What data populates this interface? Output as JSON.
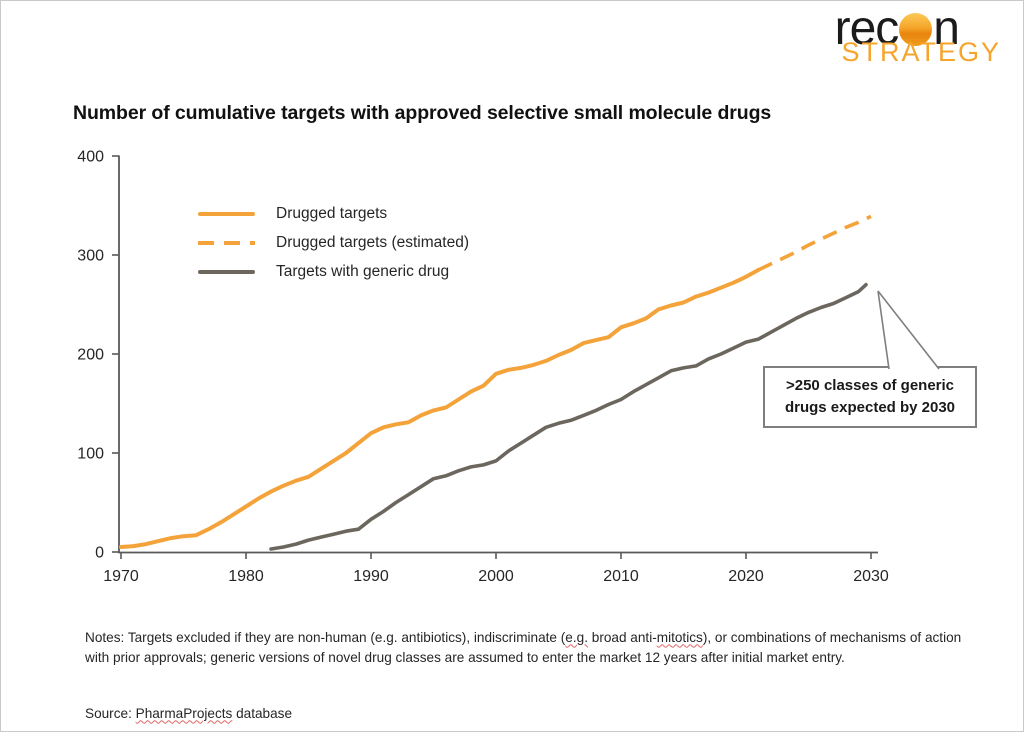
{
  "logo": {
    "word_prefix": "rec",
    "word_suffix": "n",
    "word_bottom": "STRATEGY"
  },
  "title": "Number of cumulative targets with approved selective small molecule drugs",
  "colors": {
    "orange": "#f3a33a",
    "gray": "#6c675e",
    "axis": "#595959",
    "callout_border": "#7f7f7f"
  },
  "chart_data": {
    "type": "line",
    "title": "Number of cumulative targets with approved selective small molecule drugs",
    "xlabel": "",
    "ylabel": "",
    "xlim": [
      1970,
      2030
    ],
    "ylim": [
      0,
      400
    ],
    "x_ticks": [
      1970,
      1980,
      1990,
      2000,
      2010,
      2020,
      2030
    ],
    "y_ticks": [
      0,
      100,
      200,
      300,
      400
    ],
    "grid": false,
    "legend_position": "upper-left-inside",
    "axis_color": "#595959",
    "series": [
      {
        "name": "Drugged targets",
        "color": "#f3a33a",
        "dashed": false,
        "points": [
          [
            1970,
            5
          ],
          [
            1971,
            6
          ],
          [
            1972,
            8
          ],
          [
            1973,
            11
          ],
          [
            1974,
            14
          ],
          [
            1975,
            16
          ],
          [
            1976,
            17
          ],
          [
            1977,
            23
          ],
          [
            1978,
            30
          ],
          [
            1979,
            38
          ],
          [
            1980,
            46
          ],
          [
            1981,
            54
          ],
          [
            1982,
            61
          ],
          [
            1983,
            67
          ],
          [
            1984,
            72
          ],
          [
            1985,
            76
          ],
          [
            1986,
            84
          ],
          [
            1987,
            92
          ],
          [
            1988,
            100
          ],
          [
            1989,
            110
          ],
          [
            1990,
            120
          ],
          [
            1991,
            126
          ],
          [
            1992,
            129
          ],
          [
            1993,
            131
          ],
          [
            1994,
            138
          ],
          [
            1995,
            143
          ],
          [
            1996,
            146
          ],
          [
            1997,
            154
          ],
          [
            1998,
            162
          ],
          [
            1999,
            168
          ],
          [
            2000,
            180
          ],
          [
            2001,
            184
          ],
          [
            2002,
            186
          ],
          [
            2003,
            189
          ],
          [
            2004,
            193
          ],
          [
            2005,
            199
          ],
          [
            2006,
            204
          ],
          [
            2007,
            211
          ],
          [
            2008,
            214
          ],
          [
            2009,
            217
          ],
          [
            2010,
            227
          ],
          [
            2011,
            231
          ],
          [
            2012,
            236
          ],
          [
            2013,
            245
          ],
          [
            2014,
            249
          ],
          [
            2015,
            252
          ],
          [
            2016,
            258
          ],
          [
            2017,
            262
          ],
          [
            2018,
            267
          ],
          [
            2019,
            272
          ],
          [
            2020,
            278
          ],
          [
            2021,
            285
          ]
        ]
      },
      {
        "name": "Drugged targets (estimated)",
        "color": "#f3a33a",
        "dashed": true,
        "points": [
          [
            2021,
            285
          ],
          [
            2022,
            291
          ],
          [
            2023,
            297
          ],
          [
            2024,
            303
          ],
          [
            2025,
            310
          ],
          [
            2026,
            316
          ],
          [
            2027,
            322
          ],
          [
            2028,
            328
          ],
          [
            2029,
            333
          ],
          [
            2030,
            339
          ]
        ]
      },
      {
        "name": "Targets with generic drug",
        "color": "#6c675e",
        "dashed": false,
        "points": [
          [
            1982,
            3
          ],
          [
            1983,
            5
          ],
          [
            1984,
            8
          ],
          [
            1985,
            12
          ],
          [
            1986,
            15
          ],
          [
            1987,
            18
          ],
          [
            1988,
            21
          ],
          [
            1989,
            23
          ],
          [
            1990,
            33
          ],
          [
            1991,
            41
          ],
          [
            1992,
            50
          ],
          [
            1993,
            58
          ],
          [
            1994,
            66
          ],
          [
            1995,
            74
          ],
          [
            1996,
            77
          ],
          [
            1997,
            82
          ],
          [
            1998,
            86
          ],
          [
            1999,
            88
          ],
          [
            2000,
            92
          ],
          [
            2001,
            102
          ],
          [
            2002,
            110
          ],
          [
            2003,
            118
          ],
          [
            2004,
            126
          ],
          [
            2005,
            130
          ],
          [
            2006,
            133
          ],
          [
            2007,
            138
          ],
          [
            2008,
            143
          ],
          [
            2009,
            149
          ],
          [
            2010,
            154
          ],
          [
            2011,
            162
          ],
          [
            2012,
            169
          ],
          [
            2013,
            176
          ],
          [
            2014,
            183
          ],
          [
            2015,
            186
          ],
          [
            2016,
            188
          ],
          [
            2017,
            195
          ],
          [
            2018,
            200
          ],
          [
            2019,
            206
          ],
          [
            2020,
            212
          ],
          [
            2021,
            215
          ],
          [
            2022,
            222
          ],
          [
            2023,
            229
          ],
          [
            2024,
            236
          ],
          [
            2025,
            242
          ],
          [
            2026,
            247
          ],
          [
            2027,
            251
          ],
          [
            2028,
            257
          ],
          [
            2029,
            263
          ],
          [
            2029.6,
            270
          ]
        ]
      }
    ],
    "annotation": {
      "lines": [
        ">250 classes of generic",
        "drugs expected by 2030"
      ],
      "text": ">250 classes of generic drugs expected by 2030",
      "attach_year": 2029.6,
      "attach_value": 270
    }
  },
  "notes_segments": [
    {
      "text": "Notes: Targets excluded if they are non-human (e.g. antibiotics), indiscriminate (",
      "misspelled": false
    },
    {
      "text": "e.g.",
      "misspelled": true
    },
    {
      "text": " broad anti-",
      "misspelled": false
    },
    {
      "text": "mitotics",
      "misspelled": true
    },
    {
      "text": "), or combinations of mechanisms of action with prior approvals; generic versions of novel drug classes are assumed to enter the market 12 years after initial market entry.",
      "misspelled": false
    }
  ],
  "source_segments": [
    {
      "text": "Source: ",
      "misspelled": false
    },
    {
      "text": "PharmaProjects",
      "misspelled": true
    },
    {
      "text": " database",
      "misspelled": false
    }
  ]
}
